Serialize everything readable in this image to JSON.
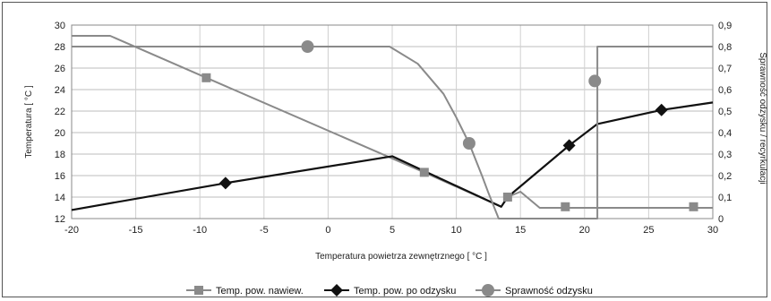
{
  "chart_data": {
    "type": "line",
    "xlabel": "Temperatura powietrza zewnętrznego [ °C ]",
    "ylabel": "Temperatura [ °C ]",
    "y2label": "Sprawność odzysku / recyrkulacji",
    "xlim": [
      -20,
      30
    ],
    "ylim": [
      12,
      30
    ],
    "y2lim": [
      0,
      0.9
    ],
    "xticks": [
      "-20",
      "-15",
      "-10",
      "-5",
      "0",
      "5",
      "10",
      "15",
      "20",
      "25",
      "30"
    ],
    "yticks": [
      "12",
      "14",
      "16",
      "18",
      "20",
      "22",
      "24",
      "26",
      "28",
      "30"
    ],
    "y2ticks": [
      "0",
      "0,1",
      "0,2",
      "0,3",
      "0,4",
      "0,5",
      "0,6",
      "0,7",
      "0,8",
      "0,9"
    ],
    "grid": true,
    "legend_position": "bottom",
    "series": [
      {
        "name": "Temp. pow. nawiew.",
        "axis": "left",
        "color": "#8a8a8a",
        "marker": "square",
        "x": [
          -20,
          -17,
          -9.5,
          7.5,
          13.5,
          14,
          15,
          16.5,
          18.5,
          28.5,
          30
        ],
        "y": [
          29,
          29,
          25.1,
          16.3,
          13.1,
          14,
          14.5,
          13,
          13,
          13,
          13
        ],
        "markers_x": [
          -9.5,
          7.5,
          14,
          18.5,
          28.5
        ],
        "markers_y": [
          25.1,
          16.3,
          14,
          13.1,
          13.1
        ]
      },
      {
        "name": "Temp. pow. po odzysku",
        "axis": "left",
        "color": "#111111",
        "marker": "diamond",
        "x": [
          -20,
          -8,
          5,
          13.5,
          14,
          18.8,
          21,
          26,
          30
        ],
        "y": [
          12.8,
          15.3,
          17.8,
          13.1,
          14,
          18.8,
          20.8,
          22.1,
          22.8
        ],
        "markers_x": [
          -8,
          18.8,
          26
        ],
        "markers_y": [
          15.3,
          18.8,
          22.1
        ]
      },
      {
        "name": "Sprawność odzysku",
        "axis": "right",
        "color": "#8a8a8a",
        "marker": "circle",
        "x": [
          -20,
          -1.5,
          4.8,
          7,
          9,
          10,
          11,
          12,
          12.5,
          13.3,
          21,
          21,
          30
        ],
        "y": [
          0.8,
          0.8,
          0.8,
          0.72,
          0.58,
          0.47,
          0.35,
          0.2,
          0.12,
          0,
          0,
          0.8,
          0.8
        ],
        "markers_x": [
          -1.6,
          11,
          20.8
        ],
        "markers_y": [
          0.8,
          0.35,
          0.64
        ]
      }
    ]
  }
}
